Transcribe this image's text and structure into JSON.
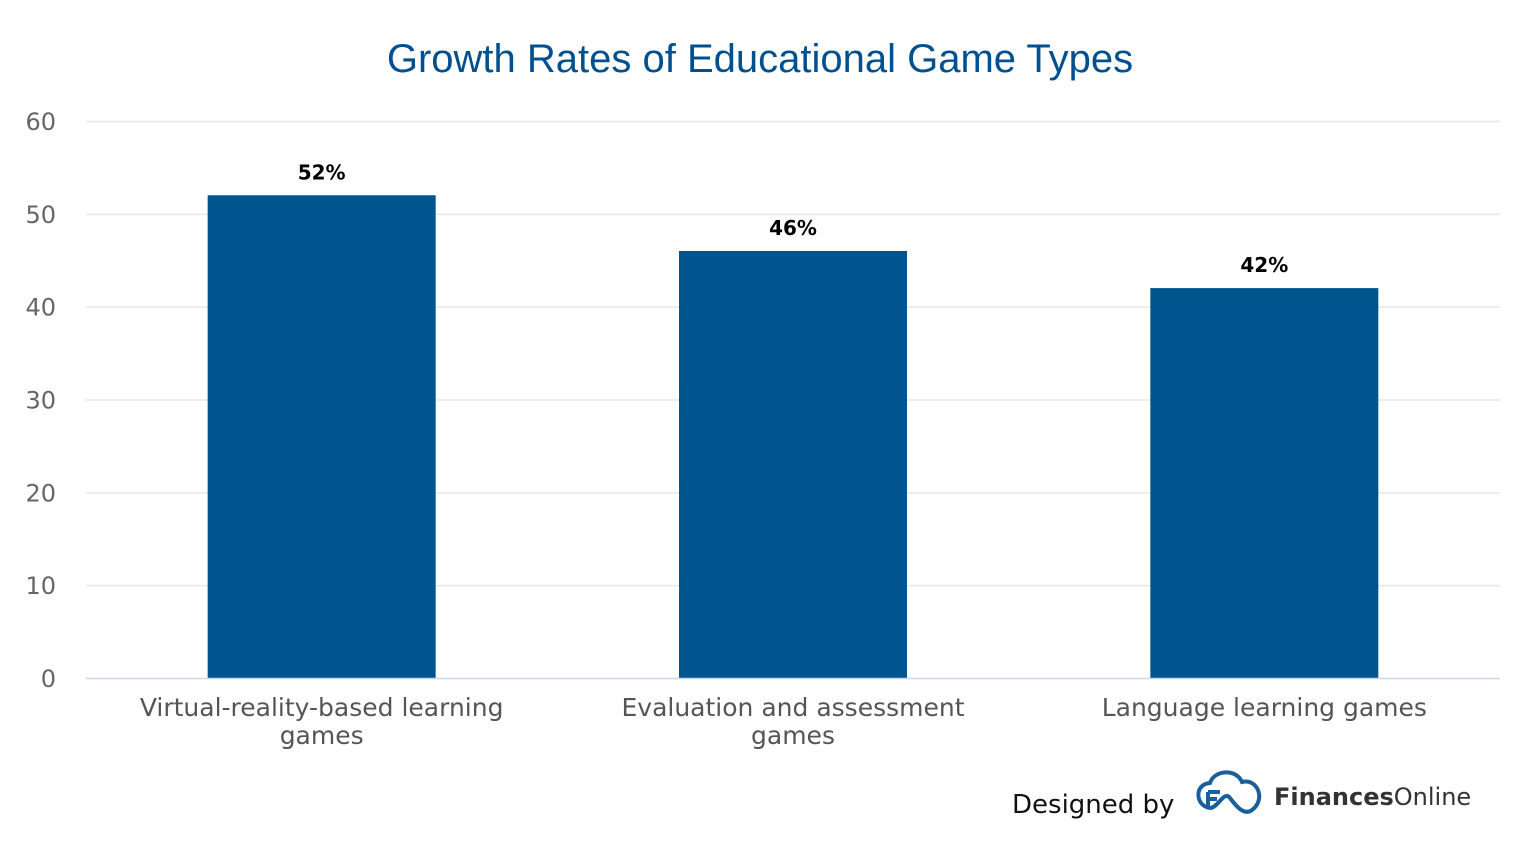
{
  "chart_data": {
    "type": "bar",
    "title": "Growth Rates of Educational Game Types",
    "categories": [
      [
        "Virtual-reality-based learning",
        "games"
      ],
      [
        "Evaluation and assessment",
        "games"
      ],
      [
        "Language learning games"
      ]
    ],
    "values": [
      52,
      46,
      42
    ],
    "data_labels": [
      "52%",
      "46%",
      "42%"
    ],
    "xlabel": "",
    "ylabel": "",
    "ylim": [
      0,
      60
    ],
    "yticks": [
      0,
      10,
      20,
      30,
      40,
      50,
      60
    ],
    "grid": true,
    "legend": "none",
    "colors": {
      "bar": "#00558f",
      "title": "#00508f",
      "grid": "#e6e6e6"
    }
  },
  "credit": {
    "designed_by": "Designed by",
    "brand_bold": "Finances",
    "brand_light": "Online"
  }
}
